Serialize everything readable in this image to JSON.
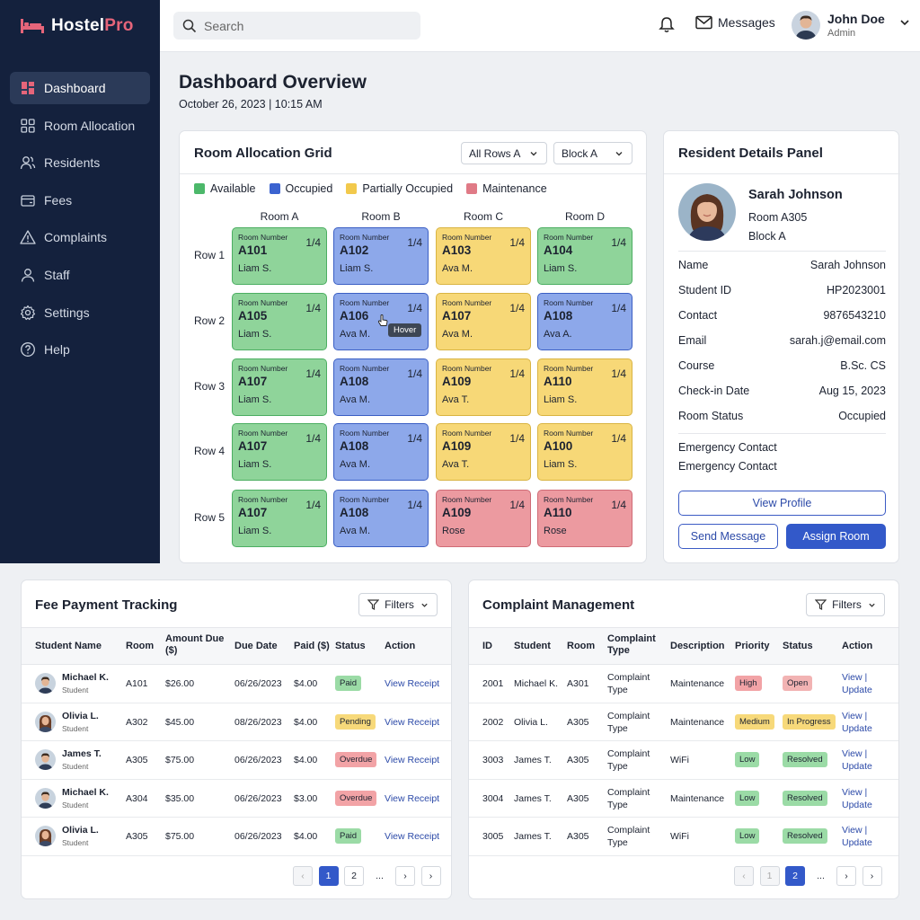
{
  "app": {
    "name_part1": "Hostel",
    "name_part2": "Pro"
  },
  "sidebar": {
    "items": [
      {
        "label": "Dashboard",
        "icon": "dashboard-icon",
        "active": true
      },
      {
        "label": "Room Allocation",
        "icon": "grid-icon"
      },
      {
        "label": "Residents",
        "icon": "users-icon"
      },
      {
        "label": "Fees",
        "icon": "wallet-icon"
      },
      {
        "label": "Complaints",
        "icon": "alert-icon"
      },
      {
        "label": "Staff",
        "icon": "staff-icon"
      },
      {
        "label": "Settings",
        "icon": "gear-icon"
      },
      {
        "label": "Help",
        "icon": "help-icon"
      }
    ]
  },
  "topbar": {
    "search_placeholder": "Search",
    "messages_label": "Messages",
    "user_name": "John Doe",
    "user_role": "Admin"
  },
  "page": {
    "title": "Dashboard Overview",
    "date": "October 26, 2023 | 10:15 AM"
  },
  "grid": {
    "title": "Room Allocation Grid",
    "filter_rows": "All Rows A",
    "filter_block": "Block A",
    "legend": [
      {
        "label": "Available",
        "color": "#4cb86a"
      },
      {
        "label": "Occupied",
        "color": "#3b63d0"
      },
      {
        "label": "Partially Occupied",
        "color": "#f2c94c"
      },
      {
        "label": "Maintenance",
        "color": "#e07a86"
      }
    ],
    "columns": [
      "Room A",
      "Room B",
      "Room C",
      "Room D"
    ],
    "row_labels": [
      "Row 1",
      "Row 2",
      "Row 3",
      "Row 4",
      "Row 5"
    ],
    "room_label": "Room Number",
    "tooltip": "Hover",
    "rows": [
      [
        {
          "num": "A101",
          "occ": "1/4",
          "resident": "Liam S.",
          "status": "available"
        },
        {
          "num": "A102",
          "occ": "1/4",
          "resident": "Liam S.",
          "status": "occupied"
        },
        {
          "num": "A103",
          "occ": "1/4",
          "resident": "Ava M.",
          "status": "partial"
        },
        {
          "num": "A104",
          "occ": "1/4",
          "resident": "Liam S.",
          "status": "available"
        }
      ],
      [
        {
          "num": "A105",
          "occ": "1/4",
          "resident": "Liam S.",
          "status": "available"
        },
        {
          "num": "A106",
          "occ": "1/4",
          "resident": "Ava M.",
          "status": "occupied"
        },
        {
          "num": "A107",
          "occ": "1/4",
          "resident": "Ava M.",
          "status": "partial"
        },
        {
          "num": "A108",
          "occ": "1/4",
          "resident": "Ava A.",
          "status": "occupied"
        }
      ],
      [
        {
          "num": "A107",
          "occ": "1/4",
          "resident": "Liam S.",
          "status": "available"
        },
        {
          "num": "A108",
          "occ": "1/4",
          "resident": "Ava M.",
          "status": "occupied"
        },
        {
          "num": "A109",
          "occ": "1/4",
          "resident": "Ava T.",
          "status": "partial"
        },
        {
          "num": "A110",
          "occ": "1/4",
          "resident": "Liam S.",
          "status": "partial"
        }
      ],
      [
        {
          "num": "A107",
          "occ": "1/4",
          "resident": "Liam S.",
          "status": "available"
        },
        {
          "num": "A108",
          "occ": "1/4",
          "resident": "Ava M.",
          "status": "occupied"
        },
        {
          "num": "A109",
          "occ": "1/4",
          "resident": "Ava T.",
          "status": "partial"
        },
        {
          "num": "A100",
          "occ": "1/4",
          "resident": "Liam S.",
          "status": "partial"
        }
      ],
      [
        {
          "num": "A107",
          "occ": "1/4",
          "resident": "Liam S.",
          "status": "available"
        },
        {
          "num": "A108",
          "occ": "1/4",
          "resident": "Ava M.",
          "status": "occupied"
        },
        {
          "num": "A109",
          "occ": "1/4",
          "resident": "Rose",
          "status": "maintenance"
        },
        {
          "num": "A110",
          "occ": "1/4",
          "resident": "Rose",
          "status": "maintenance"
        }
      ]
    ]
  },
  "resident": {
    "panel_title": "Resident Details Panel",
    "name": "Sarah Johnson",
    "room": "Room A305",
    "block": "Block A",
    "fields": [
      {
        "key": "Name",
        "value": "Sarah Johnson"
      },
      {
        "key": "Student ID",
        "value": "HP2023001"
      },
      {
        "key": "Contact",
        "value": "9876543210"
      },
      {
        "key": "Email",
        "value": "sarah.j@email.com"
      },
      {
        "key": "Course",
        "value": "B.Sc. CS"
      },
      {
        "key": "Check-in Date",
        "value": "Aug 15, 2023"
      },
      {
        "key": "Room Status",
        "value": "Occupied"
      }
    ],
    "emergency_1": "Emergency Contact",
    "emergency_2": "Emergency Contact",
    "view_profile": "View Profile",
    "send_message": "Send Message",
    "assign_room": "Assign Room"
  },
  "fees": {
    "title": "Fee Payment Tracking",
    "filters_label": "Filters",
    "headers": [
      "Student Name",
      "Room",
      "Amount Due ($)",
      "Due Date",
      "Paid ($)",
      "Status",
      "Action"
    ],
    "rows": [
      {
        "name": "Michael K.",
        "sub": "Student",
        "room": "A101",
        "due": "$26.00",
        "date": "06/26/2023",
        "paid": "$4.00",
        "status": "Paid",
        "action": "View Receipt",
        "avatar": "male"
      },
      {
        "name": "Olivia L.",
        "sub": "Student",
        "room": "A302",
        "due": "$45.00",
        "date": "08/26/2023",
        "paid": "$4.00",
        "status": "Pending",
        "action": "View Receipt",
        "avatar": "female"
      },
      {
        "name": "James T.",
        "sub": "Student",
        "room": "A305",
        "due": "$75.00",
        "date": "06/26/2023",
        "paid": "$4.00",
        "status": "Overdue",
        "action": "View Receipt",
        "avatar": "male"
      },
      {
        "name": "Michael K.",
        "sub": "Student",
        "room": "A304",
        "due": "$35.00",
        "date": "06/26/2023",
        "paid": "$3.00",
        "status": "Overdue",
        "action": "View Receipt",
        "avatar": "male"
      },
      {
        "name": "Olivia L.",
        "sub": "Student",
        "room": "A305",
        "due": "$75.00",
        "date": "06/26/2023",
        "paid": "$4.00",
        "status": "Paid",
        "action": "View Receipt",
        "avatar": "female"
      }
    ],
    "pager": [
      "‹",
      "1",
      "2",
      "...",
      "›",
      "›"
    ]
  },
  "complaints": {
    "title": "Complaint Management",
    "filters_label": "Filters",
    "headers": [
      "ID",
      "Student",
      "Room",
      "Complaint Type",
      "Description",
      "Priority",
      "Status",
      "Action"
    ],
    "rows": [
      {
        "id": "2001",
        "student": "Michael K.",
        "room": "A301",
        "type": "Complaint Type",
        "desc": "Maintenance",
        "priority": "High",
        "status": "Open",
        "action": "View | Update"
      },
      {
        "id": "2002",
        "student": "Olivia L.",
        "room": "A305",
        "type": "Complaint Type",
        "desc": "Maintenance",
        "priority": "Medium",
        "status": "In Progress",
        "action": "View | Update"
      },
      {
        "id": "3003",
        "student": "James T.",
        "room": "A305",
        "type": "Complaint Type",
        "desc": "WiFi",
        "priority": "Low",
        "status": "Resolved",
        "action": "View | Update"
      },
      {
        "id": "3004",
        "student": "James T.",
        "room": "A305",
        "type": "Complaint Type",
        "desc": "Maintenance",
        "priority": "Low",
        "status": "Resolved",
        "action": "View | Update"
      },
      {
        "id": "3005",
        "student": "James T.",
        "room": "A305",
        "type": "Complaint Type",
        "desc": "WiFi",
        "priority": "Low",
        "status": "Resolved",
        "action": "View | Update"
      }
    ],
    "pager": [
      "‹",
      "1",
      "2",
      "...",
      "›",
      "›"
    ]
  }
}
